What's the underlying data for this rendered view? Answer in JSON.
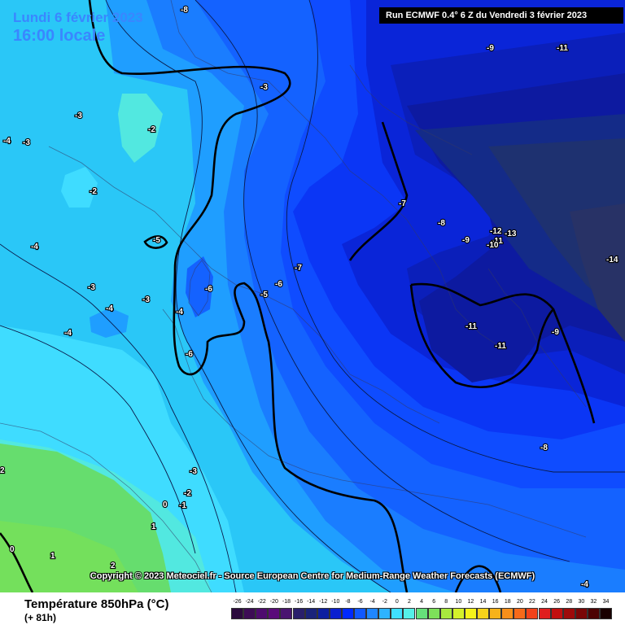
{
  "header": {
    "date_text": "Lundi 6 février 2023",
    "hour_text": "16:00 locale",
    "run_text": "Run ECMWF 0.4° 6 Z du Vendredi 3 février 2023"
  },
  "copyright": "Copyright © 2023 Meteociel.fr - Source European Centre for Medium-Range Weather Forecasts (ECMWF)",
  "footer": {
    "parameter": "Température 850hPa (°C)",
    "lead_time": "(+ 81h)"
  },
  "scale": {
    "ticks": [
      "-26",
      "-24",
      "-22",
      "-20",
      "-18",
      "-16",
      "-14",
      "-12",
      "-10",
      "-8",
      "-6",
      "-4",
      "-2",
      "0",
      "2",
      "4",
      "6",
      "8",
      "10",
      "12",
      "14",
      "16",
      "18",
      "20",
      "22",
      "24",
      "26",
      "28",
      "30",
      "32",
      "34"
    ],
    "colors": [
      "#2b0a3d",
      "#3d0c55",
      "#4e0b6e",
      "#5a0b7a",
      "#4a1570",
      "#2a1f6b",
      "#1a237a",
      "#0d1fa0",
      "#0a1fd0",
      "#0029ff",
      "#1158ff",
      "#1f86ff",
      "#2eb3ff",
      "#3fdfff",
      "#55f0e8",
      "#66e07a",
      "#7de05a",
      "#a8e83e",
      "#d4f02a",
      "#f5f21a",
      "#f7d31a",
      "#f7b21a",
      "#f78f1a",
      "#f66a1a",
      "#f2421a",
      "#e01f1f",
      "#c20f0f",
      "#9e0a0a",
      "#7a0606",
      "#4d0303",
      "#1a0000"
    ]
  },
  "map_labels": [
    {
      "text": "-8"
    },
    {
      "text": "-9"
    },
    {
      "text": "-11"
    },
    {
      "text": "-3"
    },
    {
      "text": "-3"
    },
    {
      "text": "-2"
    },
    {
      "text": "-4"
    },
    {
      "text": "-3"
    },
    {
      "text": "-2"
    },
    {
      "text": "-7"
    },
    {
      "text": "-8"
    },
    {
      "text": "-12"
    },
    {
      "text": "-13"
    },
    {
      "text": "-11"
    },
    {
      "text": "-10"
    },
    {
      "text": "-9"
    },
    {
      "text": "-14"
    },
    {
      "text": "-5"
    },
    {
      "text": "-4"
    },
    {
      "text": "-7"
    },
    {
      "text": "-6"
    },
    {
      "text": "-6"
    },
    {
      "text": "-5"
    },
    {
      "text": "-3"
    },
    {
      "text": "-3"
    },
    {
      "text": "-4"
    },
    {
      "text": "-4"
    },
    {
      "text": "-4"
    },
    {
      "text": "-6"
    },
    {
      "text": "-11"
    },
    {
      "text": "-11"
    },
    {
      "text": "-9"
    },
    {
      "text": "-8"
    },
    {
      "text": "-3"
    },
    {
      "text": "-2"
    },
    {
      "text": "0"
    },
    {
      "text": "-1"
    },
    {
      "text": "1"
    },
    {
      "text": "2"
    },
    {
      "text": "0"
    },
    {
      "text": "1"
    },
    {
      "text": "2"
    },
    {
      "text": "-4"
    }
  ]
}
